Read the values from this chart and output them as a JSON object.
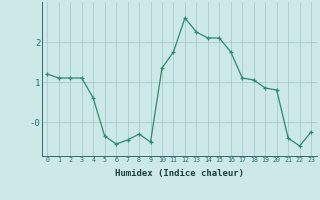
{
  "xlabel": "Humidex (Indice chaleur)",
  "ylabel": "",
  "x": [
    0,
    1,
    2,
    3,
    4,
    5,
    6,
    7,
    8,
    9,
    10,
    11,
    12,
    13,
    14,
    15,
    16,
    17,
    18,
    19,
    20,
    21,
    22,
    23
  ],
  "y": [
    1.2,
    1.1,
    1.1,
    1.1,
    0.6,
    -0.35,
    -0.55,
    -0.45,
    -0.3,
    -0.5,
    1.35,
    1.75,
    2.6,
    2.25,
    2.1,
    2.1,
    1.75,
    1.1,
    1.05,
    0.85,
    0.8,
    -0.4,
    -0.6,
    -0.25
  ],
  "line_color": "#2e8b6e",
  "marker": "+",
  "bg_color": "#cce8e8",
  "grid_color": "#aacccc",
  "tick_color": "#2e6b6b",
  "label_color": "#1a4040",
  "xlim": [
    -0.5,
    23.5
  ],
  "ylim": [
    -0.85,
    3.0
  ],
  "xticks": [
    0,
    1,
    2,
    3,
    4,
    5,
    6,
    7,
    8,
    9,
    10,
    11,
    12,
    13,
    14,
    15,
    16,
    17,
    18,
    19,
    20,
    21,
    22,
    23
  ],
  "figsize": [
    3.2,
    2.0
  ],
  "dpi": 100
}
